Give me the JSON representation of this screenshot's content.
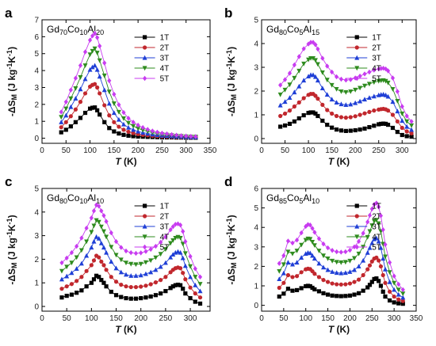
{
  "chart_data": [
    {
      "panel": "a",
      "type": "line",
      "title": "Gd70Co10Al20",
      "title_parts": [
        [
          "Gd",
          ""
        ],
        [
          "70",
          "sub"
        ],
        [
          "Co",
          ""
        ],
        [
          "10",
          "sub"
        ],
        [
          "Al",
          ""
        ],
        [
          "20",
          "sub"
        ]
      ],
      "xlabel": "T (K)",
      "ylabel": "-ΔSM (J kg-1K-1)",
      "xlim": [
        0,
        350
      ],
      "ylim": [
        -0.3,
        7
      ],
      "xticks": [
        0,
        50,
        100,
        150,
        200,
        250,
        300,
        350
      ],
      "yticks": [
        0,
        1,
        2,
        3,
        4,
        5,
        6,
        7
      ],
      "x": [
        40,
        50,
        60,
        70,
        80,
        90,
        100,
        105,
        110,
        115,
        120,
        130,
        140,
        150,
        160,
        170,
        180,
        190,
        200,
        210,
        220,
        230,
        240,
        250,
        260,
        270,
        280,
        290,
        300,
        310,
        320
      ],
      "series": [
        {
          "name": "1T",
          "marker": "square",
          "color": "#000000",
          "values": [
            0.35,
            0.5,
            0.7,
            0.95,
            1.2,
            1.5,
            1.75,
            1.8,
            1.82,
            1.65,
            1.4,
            0.95,
            0.6,
            0.4,
            0.28,
            0.2,
            0.15,
            0.12,
            0.1,
            0.09,
            0.08,
            0.07,
            0.06,
            0.05,
            0.05,
            0.05,
            0.04,
            0.04,
            0.03,
            0.03,
            0.03
          ]
        },
        {
          "name": "2T",
          "marker": "circle",
          "color": "#c1272d",
          "values": [
            0.65,
            0.95,
            1.3,
            1.7,
            2.15,
            2.65,
            3.05,
            3.15,
            3.2,
            3.0,
            2.65,
            1.95,
            1.35,
            0.95,
            0.68,
            0.5,
            0.38,
            0.3,
            0.24,
            0.2,
            0.17,
            0.14,
            0.12,
            0.1,
            0.09,
            0.08,
            0.07,
            0.06,
            0.06,
            0.05,
            0.05
          ]
        },
        {
          "name": "3T",
          "marker": "triangle-up",
          "color": "#1f3fd6",
          "values": [
            0.95,
            1.35,
            1.85,
            2.35,
            2.9,
            3.5,
            4.05,
            4.2,
            4.3,
            4.05,
            3.65,
            2.85,
            2.05,
            1.5,
            1.1,
            0.82,
            0.63,
            0.5,
            0.4,
            0.33,
            0.28,
            0.23,
            0.19,
            0.16,
            0.14,
            0.12,
            0.1,
            0.09,
            0.08,
            0.07,
            0.06
          ]
        },
        {
          "name": "4T",
          "marker": "triangle-down",
          "color": "#2e8b1e",
          "values": [
            1.25,
            1.75,
            2.35,
            2.95,
            3.6,
            4.3,
            4.95,
            5.15,
            5.3,
            5.05,
            4.6,
            3.7,
            2.75,
            2.05,
            1.55,
            1.17,
            0.9,
            0.72,
            0.58,
            0.48,
            0.4,
            0.33,
            0.28,
            0.23,
            0.2,
            0.17,
            0.14,
            0.12,
            0.1,
            0.09,
            0.08
          ]
        },
        {
          "name": "5T",
          "marker": "diamond",
          "color": "#c83cf0",
          "values": [
            1.55,
            2.15,
            2.85,
            3.55,
            4.3,
            5.1,
            5.8,
            6.05,
            6.2,
            5.95,
            5.45,
            4.45,
            3.4,
            2.6,
            1.98,
            1.52,
            1.18,
            0.95,
            0.77,
            0.63,
            0.52,
            0.43,
            0.36,
            0.3,
            0.26,
            0.22,
            0.18,
            0.15,
            0.13,
            0.11,
            0.1
          ]
        }
      ]
    },
    {
      "panel": "b",
      "type": "line",
      "title": "Gd80Co5Al15",
      "title_parts": [
        [
          "Gd",
          ""
        ],
        [
          "80",
          "sub"
        ],
        [
          "Co",
          ""
        ],
        [
          "5",
          "sub"
        ],
        [
          "Al",
          ""
        ],
        [
          "15",
          "sub"
        ]
      ],
      "xlabel": "T (K)",
      "ylabel": "-ΔSM (J kg-1K-1)",
      "xlim": [
        0,
        330
      ],
      "ylim": [
        -0.2,
        5
      ],
      "xticks": [
        0,
        50,
        100,
        150,
        200,
        250,
        300
      ],
      "yticks": [
        0,
        1,
        2,
        3,
        4,
        5
      ],
      "x": [
        40,
        50,
        60,
        70,
        80,
        90,
        100,
        105,
        110,
        115,
        120,
        130,
        140,
        150,
        160,
        170,
        180,
        190,
        200,
        210,
        220,
        230,
        240,
        250,
        255,
        260,
        265,
        270,
        280,
        290,
        300,
        310,
        320
      ],
      "series": [
        {
          "name": "1T",
          "marker": "square",
          "color": "#000000",
          "values": [
            0.5,
            0.55,
            0.62,
            0.72,
            0.85,
            0.98,
            1.08,
            1.1,
            1.1,
            1.05,
            0.95,
            0.75,
            0.58,
            0.46,
            0.38,
            0.34,
            0.32,
            0.33,
            0.35,
            0.38,
            0.42,
            0.48,
            0.54,
            0.6,
            0.62,
            0.63,
            0.62,
            0.58,
            0.45,
            0.28,
            0.15,
            0.1,
            0.08
          ]
        },
        {
          "name": "2T",
          "marker": "circle",
          "color": "#c1272d",
          "values": [
            0.95,
            1.05,
            1.18,
            1.35,
            1.52,
            1.7,
            1.84,
            1.88,
            1.88,
            1.8,
            1.68,
            1.42,
            1.2,
            1.05,
            0.95,
            0.9,
            0.88,
            0.9,
            0.94,
            1.0,
            1.06,
            1.12,
            1.18,
            1.22,
            1.24,
            1.25,
            1.23,
            1.18,
            1.0,
            0.72,
            0.45,
            0.3,
            0.22
          ]
        },
        {
          "name": "3T",
          "marker": "triangle-up",
          "color": "#1f3fd6",
          "values": [
            1.4,
            1.55,
            1.72,
            1.95,
            2.2,
            2.45,
            2.62,
            2.68,
            2.68,
            2.6,
            2.45,
            2.12,
            1.85,
            1.65,
            1.52,
            1.45,
            1.42,
            1.44,
            1.5,
            1.57,
            1.65,
            1.72,
            1.78,
            1.83,
            1.85,
            1.86,
            1.83,
            1.77,
            1.55,
            1.15,
            0.75,
            0.5,
            0.37
          ]
        },
        {
          "name": "4T",
          "marker": "triangle-down",
          "color": "#2e8b1e",
          "values": [
            1.85,
            2.05,
            2.27,
            2.55,
            2.85,
            3.15,
            3.32,
            3.38,
            3.38,
            3.3,
            3.13,
            2.78,
            2.47,
            2.25,
            2.08,
            1.98,
            1.95,
            1.98,
            2.05,
            2.13,
            2.22,
            2.3,
            2.37,
            2.42,
            2.44,
            2.45,
            2.42,
            2.35,
            2.08,
            1.58,
            1.05,
            0.72,
            0.55
          ]
        },
        {
          "name": "5T",
          "marker": "diamond",
          "color": "#c83cf0",
          "values": [
            2.25,
            2.48,
            2.75,
            3.1,
            3.45,
            3.78,
            3.98,
            4.05,
            4.05,
            3.95,
            3.77,
            3.38,
            3.05,
            2.8,
            2.6,
            2.5,
            2.46,
            2.48,
            2.55,
            2.63,
            2.72,
            2.8,
            2.88,
            2.93,
            2.95,
            2.96,
            2.93,
            2.85,
            2.55,
            1.98,
            1.35,
            0.95,
            0.72
          ]
        }
      ]
    },
    {
      "panel": "c",
      "type": "line",
      "title": "Gd80Co10Al10",
      "title_parts": [
        [
          "Gd",
          ""
        ],
        [
          "80",
          "sub"
        ],
        [
          "Co",
          ""
        ],
        [
          "10",
          "sub"
        ],
        [
          "Al",
          ""
        ],
        [
          "10",
          "sub"
        ]
      ],
      "xlabel": "T (K)",
      "ylabel": "-ΔSM (J kg-1K-1)",
      "xlim": [
        0,
        340
      ],
      "ylim": [
        -0.2,
        5
      ],
      "xticks": [
        0,
        50,
        100,
        150,
        200,
        250,
        300
      ],
      "yticks": [
        0,
        1,
        2,
        3,
        4,
        5
      ],
      "x": [
        40,
        50,
        60,
        70,
        80,
        90,
        100,
        105,
        110,
        115,
        120,
        125,
        130,
        140,
        150,
        160,
        170,
        180,
        190,
        200,
        210,
        220,
        230,
        240,
        250,
        260,
        265,
        270,
        275,
        280,
        285,
        290,
        300,
        310,
        320
      ],
      "series": [
        {
          "name": "1T",
          "marker": "square",
          "color": "#000000",
          "values": [
            0.38,
            0.45,
            0.5,
            0.58,
            0.68,
            0.85,
            1.0,
            1.15,
            1.3,
            1.25,
            1.12,
            1.0,
            0.85,
            0.62,
            0.48,
            0.4,
            0.35,
            0.33,
            0.33,
            0.35,
            0.38,
            0.42,
            0.48,
            0.55,
            0.65,
            0.78,
            0.85,
            0.9,
            0.92,
            0.9,
            0.75,
            0.55,
            0.35,
            0.2,
            0.12
          ]
        },
        {
          "name": "2T",
          "marker": "circle",
          "color": "#c1272d",
          "values": [
            0.75,
            0.85,
            0.95,
            1.08,
            1.25,
            1.5,
            1.75,
            1.95,
            2.15,
            2.08,
            1.9,
            1.75,
            1.55,
            1.25,
            1.05,
            0.92,
            0.85,
            0.82,
            0.82,
            0.84,
            0.88,
            0.94,
            1.02,
            1.12,
            1.25,
            1.45,
            1.55,
            1.62,
            1.65,
            1.62,
            1.42,
            1.15,
            0.8,
            0.55,
            0.38
          ]
        },
        {
          "name": "3T",
          "marker": "triangle-up",
          "color": "#1f3fd6",
          "values": [
            1.15,
            1.28,
            1.42,
            1.6,
            1.82,
            2.15,
            2.5,
            2.75,
            2.95,
            2.88,
            2.68,
            2.5,
            2.28,
            1.9,
            1.62,
            1.45,
            1.35,
            1.3,
            1.3,
            1.32,
            1.38,
            1.45,
            1.55,
            1.68,
            1.85,
            2.08,
            2.2,
            2.28,
            2.32,
            2.28,
            2.05,
            1.72,
            1.25,
            0.9,
            0.65
          ]
        },
        {
          "name": "4T",
          "marker": "triangle-down",
          "color": "#2e8b1e",
          "values": [
            1.5,
            1.68,
            1.85,
            2.08,
            2.38,
            2.75,
            3.15,
            3.42,
            3.65,
            3.58,
            3.38,
            3.18,
            2.95,
            2.52,
            2.18,
            1.98,
            1.85,
            1.8,
            1.78,
            1.8,
            1.87,
            1.95,
            2.07,
            2.22,
            2.42,
            2.68,
            2.8,
            2.9,
            2.94,
            2.9,
            2.65,
            2.25,
            1.7,
            1.25,
            0.95
          ]
        },
        {
          "name": "5T",
          "marker": "diamond",
          "color": "#c83cf0",
          "values": [
            1.85,
            2.05,
            2.28,
            2.55,
            2.9,
            3.32,
            3.75,
            4.05,
            4.3,
            4.25,
            4.05,
            3.85,
            3.6,
            3.12,
            2.75,
            2.5,
            2.35,
            2.28,
            2.25,
            2.27,
            2.33,
            2.42,
            2.55,
            2.72,
            2.95,
            3.25,
            3.38,
            3.48,
            3.5,
            3.45,
            3.18,
            2.75,
            2.12,
            1.6,
            1.25
          ]
        }
      ]
    },
    {
      "panel": "d",
      "type": "line",
      "title": "Gd85Co5Al10",
      "title_parts": [
        [
          "Gd",
          ""
        ],
        [
          "85",
          "sub"
        ],
        [
          "Co",
          ""
        ],
        [
          "5",
          "sub"
        ],
        [
          "Al",
          ""
        ],
        [
          "10",
          "sub"
        ]
      ],
      "xlabel": "T (K)",
      "ylabel": "-ΔSM (J kg-1K-1)",
      "xlim": [
        0,
        350
      ],
      "ylim": [
        -0.3,
        6
      ],
      "xticks": [
        0,
        50,
        100,
        150,
        200,
        250,
        300,
        350
      ],
      "yticks": [
        0,
        1,
        2,
        3,
        4,
        5,
        6
      ],
      "x": [
        40,
        50,
        60,
        70,
        80,
        90,
        100,
        105,
        110,
        115,
        120,
        130,
        140,
        150,
        160,
        170,
        180,
        190,
        200,
        210,
        220,
        230,
        240,
        245,
        250,
        255,
        260,
        265,
        270,
        275,
        280,
        290,
        300,
        310,
        320
      ],
      "series": [
        {
          "name": "1T",
          "marker": "square",
          "color": "#000000",
          "values": [
            0.45,
            0.6,
            0.85,
            0.75,
            0.78,
            0.88,
            0.98,
            1.0,
            0.98,
            0.9,
            0.82,
            0.72,
            0.62,
            0.55,
            0.5,
            0.48,
            0.47,
            0.48,
            0.5,
            0.55,
            0.62,
            0.75,
            0.92,
            1.05,
            1.2,
            1.35,
            1.38,
            1.25,
            1.0,
            0.7,
            0.45,
            0.25,
            0.15,
            0.1,
            0.08
          ]
        },
        {
          "name": "2T",
          "marker": "circle",
          "color": "#c1272d",
          "values": [
            0.9,
            1.15,
            1.55,
            1.45,
            1.5,
            1.7,
            1.85,
            1.88,
            1.86,
            1.75,
            1.62,
            1.45,
            1.3,
            1.2,
            1.12,
            1.08,
            1.07,
            1.08,
            1.12,
            1.2,
            1.32,
            1.55,
            1.85,
            2.05,
            2.25,
            2.4,
            2.45,
            2.3,
            2.0,
            1.55,
            1.15,
            0.7,
            0.45,
            0.3,
            0.22
          ]
        },
        {
          "name": "3T",
          "marker": "triangle-up",
          "color": "#1f3fd6",
          "values": [
            1.35,
            1.65,
            2.2,
            2.1,
            2.2,
            2.45,
            2.65,
            2.7,
            2.68,
            2.55,
            2.4,
            2.15,
            1.95,
            1.82,
            1.72,
            1.67,
            1.65,
            1.67,
            1.72,
            1.82,
            2.0,
            2.3,
            2.7,
            2.95,
            3.2,
            3.4,
            3.45,
            3.28,
            2.95,
            2.4,
            1.85,
            1.2,
            0.8,
            0.55,
            0.4
          ]
        },
        {
          "name": "4T",
          "marker": "triangle-down",
          "color": "#2e8b1e",
          "values": [
            1.75,
            2.1,
            2.75,
            2.65,
            2.8,
            3.1,
            3.35,
            3.42,
            3.4,
            3.25,
            3.08,
            2.8,
            2.55,
            2.4,
            2.28,
            2.22,
            2.2,
            2.22,
            2.28,
            2.42,
            2.65,
            3.0,
            3.5,
            3.8,
            4.1,
            4.32,
            4.38,
            4.2,
            3.8,
            3.15,
            2.5,
            1.7,
            1.15,
            0.8,
            0.6
          ]
        },
        {
          "name": "5T",
          "marker": "diamond",
          "color": "#c83cf0",
          "values": [
            2.15,
            2.55,
            3.3,
            3.2,
            3.35,
            3.72,
            4.05,
            4.15,
            4.12,
            3.95,
            3.75,
            3.42,
            3.15,
            2.95,
            2.82,
            2.75,
            2.73,
            2.75,
            2.83,
            3.0,
            3.28,
            3.7,
            4.28,
            4.62,
            4.95,
            5.18,
            5.25,
            5.05,
            4.6,
            3.88,
            3.12,
            2.2,
            1.5,
            1.08,
            0.8
          ]
        }
      ]
    }
  ]
}
